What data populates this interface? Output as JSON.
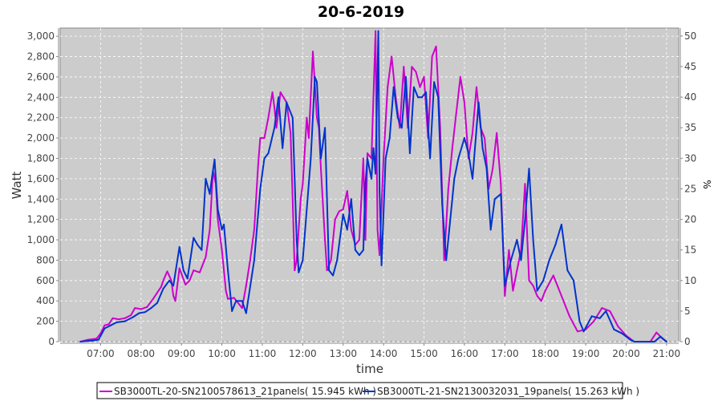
{
  "chart_data": {
    "type": "line",
    "title": "20-6-2019",
    "xlabel": "time",
    "ylabel": "Watt",
    "y2label": "%",
    "xlim": [
      6.0,
      21.3
    ],
    "ylim": [
      0,
      3080
    ],
    "y2lim": [
      0,
      51.3
    ],
    "grid": true,
    "legend_position": "bottom",
    "x_ticks": [
      {
        "v": 7,
        "label": "07:00"
      },
      {
        "v": 8,
        "label": "08:00"
      },
      {
        "v": 9,
        "label": "09:00"
      },
      {
        "v": 10,
        "label": "10:00"
      },
      {
        "v": 11,
        "label": "11:00"
      },
      {
        "v": 12,
        "label": "12:00"
      },
      {
        "v": 13,
        "label": "13:00"
      },
      {
        "v": 14,
        "label": "14:00"
      },
      {
        "v": 15,
        "label": "15:00"
      },
      {
        "v": 16,
        "label": "16:00"
      },
      {
        "v": 17,
        "label": "17:00"
      },
      {
        "v": 18,
        "label": "18:00"
      },
      {
        "v": 19,
        "label": "19:00"
      },
      {
        "v": 20,
        "label": "20:00"
      },
      {
        "v": 21,
        "label": "21:00"
      }
    ],
    "y_ticks": [
      {
        "v": 0,
        "label": "0"
      },
      {
        "v": 200,
        "label": "200"
      },
      {
        "v": 400,
        "label": "400"
      },
      {
        "v": 600,
        "label": "600"
      },
      {
        "v": 800,
        "label": "800"
      },
      {
        "v": 1000,
        "label": "1,000"
      },
      {
        "v": 1200,
        "label": "1,200"
      },
      {
        "v": 1400,
        "label": "1,400"
      },
      {
        "v": 1600,
        "label": "1,600"
      },
      {
        "v": 1800,
        "label": "1,800"
      },
      {
        "v": 2000,
        "label": "2,000"
      },
      {
        "v": 2200,
        "label": "2,200"
      },
      {
        "v": 2400,
        "label": "2,400"
      },
      {
        "v": 2600,
        "label": "2,600"
      },
      {
        "v": 2800,
        "label": "2,800"
      },
      {
        "v": 3000,
        "label": "3,000"
      }
    ],
    "y2_ticks": [
      {
        "v": 0,
        "label": "0"
      },
      {
        "v": 5,
        "label": "5"
      },
      {
        "v": 10,
        "label": "10"
      },
      {
        "v": 15,
        "label": "15"
      },
      {
        "v": 20,
        "label": "20"
      },
      {
        "v": 25,
        "label": "25"
      },
      {
        "v": 30,
        "label": "30"
      },
      {
        "v": 35,
        "label": "35"
      },
      {
        "v": 40,
        "label": "40"
      },
      {
        "v": 45,
        "label": "45"
      },
      {
        "v": 50,
        "label": "50"
      }
    ],
    "series": [
      {
        "name": "SB3000TL-20-SN2100578613_21panels( 15.945 kWh )",
        "color": "#cc00cc",
        "points": [
          [
            6.5,
            0
          ],
          [
            6.7,
            20
          ],
          [
            6.9,
            30
          ],
          [
            7.0,
            80
          ],
          [
            7.1,
            160
          ],
          [
            7.2,
            170
          ],
          [
            7.3,
            230
          ],
          [
            7.45,
            220
          ],
          [
            7.6,
            230
          ],
          [
            7.75,
            260
          ],
          [
            7.85,
            330
          ],
          [
            8.0,
            320
          ],
          [
            8.15,
            340
          ],
          [
            8.3,
            420
          ],
          [
            8.4,
            480
          ],
          [
            8.5,
            540
          ],
          [
            8.55,
            600
          ],
          [
            8.65,
            690
          ],
          [
            8.75,
            600
          ],
          [
            8.8,
            450
          ],
          [
            8.85,
            400
          ],
          [
            8.95,
            720
          ],
          [
            9.1,
            560
          ],
          [
            9.2,
            600
          ],
          [
            9.3,
            700
          ],
          [
            9.45,
            680
          ],
          [
            9.6,
            830
          ],
          [
            9.7,
            1100
          ],
          [
            9.78,
            1680
          ],
          [
            9.85,
            1550
          ],
          [
            9.9,
            1200
          ],
          [
            10.0,
            900
          ],
          [
            10.1,
            500
          ],
          [
            10.15,
            420
          ],
          [
            10.3,
            430
          ],
          [
            10.5,
            330
          ],
          [
            10.6,
            550
          ],
          [
            10.7,
            800
          ],
          [
            10.8,
            1100
          ],
          [
            10.9,
            1750
          ],
          [
            10.95,
            2000
          ],
          [
            11.05,
            2000
          ],
          [
            11.15,
            2200
          ],
          [
            11.25,
            2450
          ],
          [
            11.3,
            2300
          ],
          [
            11.35,
            2100
          ],
          [
            11.45,
            2450
          ],
          [
            11.6,
            2350
          ],
          [
            11.7,
            2050
          ],
          [
            11.75,
            1400
          ],
          [
            11.8,
            700
          ],
          [
            11.85,
            800
          ],
          [
            11.95,
            1400
          ],
          [
            12.0,
            1550
          ],
          [
            12.1,
            2200
          ],
          [
            12.15,
            2000
          ],
          [
            12.25,
            2850
          ],
          [
            12.35,
            2200
          ],
          [
            12.4,
            2100
          ],
          [
            12.45,
            1700
          ],
          [
            12.55,
            1000
          ],
          [
            12.6,
            700
          ],
          [
            12.7,
            800
          ],
          [
            12.8,
            1200
          ],
          [
            12.9,
            1280
          ],
          [
            13.0,
            1300
          ],
          [
            13.1,
            1480
          ],
          [
            13.2,
            1100
          ],
          [
            13.3,
            950
          ],
          [
            13.4,
            1000
          ],
          [
            13.5,
            1800
          ],
          [
            13.55,
            1000
          ],
          [
            13.6,
            1850
          ],
          [
            13.7,
            1800
          ],
          [
            13.75,
            2400
          ],
          [
            13.8,
            3050
          ],
          [
            13.85,
            1100
          ],
          [
            13.9,
            850
          ],
          [
            14.0,
            1800
          ],
          [
            14.1,
            2500
          ],
          [
            14.2,
            2800
          ],
          [
            14.3,
            2400
          ],
          [
            14.4,
            2100
          ],
          [
            14.5,
            2700
          ],
          [
            14.6,
            2100
          ],
          [
            14.7,
            2700
          ],
          [
            14.8,
            2650
          ],
          [
            14.9,
            2500
          ],
          [
            15.0,
            2600
          ],
          [
            15.1,
            2000
          ],
          [
            15.2,
            2800
          ],
          [
            15.3,
            2900
          ],
          [
            15.4,
            2100
          ],
          [
            15.5,
            800
          ],
          [
            15.6,
            1500
          ],
          [
            15.7,
            1900
          ],
          [
            15.8,
            2250
          ],
          [
            15.9,
            2600
          ],
          [
            16.0,
            2350
          ],
          [
            16.1,
            1800
          ],
          [
            16.2,
            2050
          ],
          [
            16.3,
            2500
          ],
          [
            16.4,
            2100
          ],
          [
            16.5,
            2000
          ],
          [
            16.6,
            1500
          ],
          [
            16.7,
            1700
          ],
          [
            16.8,
            2050
          ],
          [
            16.9,
            1550
          ],
          [
            17.0,
            450
          ],
          [
            17.1,
            900
          ],
          [
            17.2,
            500
          ],
          [
            17.3,
            700
          ],
          [
            17.4,
            900
          ],
          [
            17.5,
            1550
          ],
          [
            17.6,
            600
          ],
          [
            17.7,
            550
          ],
          [
            17.8,
            450
          ],
          [
            17.9,
            400
          ],
          [
            18.0,
            500
          ],
          [
            18.2,
            650
          ],
          [
            18.4,
            450
          ],
          [
            18.6,
            250
          ],
          [
            18.8,
            100
          ],
          [
            19.0,
            120
          ],
          [
            19.2,
            200
          ],
          [
            19.4,
            330
          ],
          [
            19.6,
            300
          ],
          [
            19.8,
            150
          ],
          [
            20.0,
            60
          ],
          [
            20.2,
            0
          ],
          [
            20.6,
            0
          ],
          [
            20.75,
            90
          ],
          [
            20.9,
            30
          ],
          [
            21.0,
            0
          ]
        ]
      },
      {
        "name": "SB3000TL-21-SN2130032031_19panels( 15.263 kWh )",
        "color": "#0033cc",
        "points": [
          [
            6.5,
            0
          ],
          [
            6.8,
            10
          ],
          [
            6.95,
            20
          ],
          [
            7.1,
            130
          ],
          [
            7.25,
            160
          ],
          [
            7.4,
            190
          ],
          [
            7.6,
            200
          ],
          [
            7.8,
            240
          ],
          [
            7.95,
            280
          ],
          [
            8.1,
            290
          ],
          [
            8.25,
            330
          ],
          [
            8.4,
            380
          ],
          [
            8.55,
            520
          ],
          [
            8.7,
            600
          ],
          [
            8.8,
            550
          ],
          [
            8.9,
            800
          ],
          [
            8.95,
            930
          ],
          [
            9.05,
            700
          ],
          [
            9.15,
            620
          ],
          [
            9.3,
            1020
          ],
          [
            9.4,
            950
          ],
          [
            9.5,
            900
          ],
          [
            9.6,
            1600
          ],
          [
            9.7,
            1450
          ],
          [
            9.75,
            1600
          ],
          [
            9.82,
            1790
          ],
          [
            9.9,
            1300
          ],
          [
            10.0,
            1100
          ],
          [
            10.05,
            1150
          ],
          [
            10.15,
            700
          ],
          [
            10.25,
            300
          ],
          [
            10.35,
            400
          ],
          [
            10.5,
            400
          ],
          [
            10.6,
            280
          ],
          [
            10.8,
            800
          ],
          [
            10.95,
            1500
          ],
          [
            11.05,
            1800
          ],
          [
            11.15,
            1850
          ],
          [
            11.3,
            2100
          ],
          [
            11.4,
            2400
          ],
          [
            11.5,
            1900
          ],
          [
            11.6,
            2350
          ],
          [
            11.75,
            2200
          ],
          [
            11.85,
            1000
          ],
          [
            11.9,
            680
          ],
          [
            12.0,
            800
          ],
          [
            12.1,
            1300
          ],
          [
            12.2,
            1800
          ],
          [
            12.3,
            2600
          ],
          [
            12.35,
            2550
          ],
          [
            12.45,
            1800
          ],
          [
            12.55,
            2100
          ],
          [
            12.65,
            700
          ],
          [
            12.75,
            650
          ],
          [
            12.85,
            800
          ],
          [
            13.0,
            1250
          ],
          [
            13.1,
            1100
          ],
          [
            13.2,
            1400
          ],
          [
            13.3,
            900
          ],
          [
            13.4,
            850
          ],
          [
            13.5,
            900
          ],
          [
            13.55,
            1550
          ],
          [
            13.6,
            1800
          ],
          [
            13.7,
            1600
          ],
          [
            13.75,
            1900
          ],
          [
            13.8,
            1650
          ],
          [
            13.87,
            3050
          ],
          [
            13.9,
            1500
          ],
          [
            13.95,
            750
          ],
          [
            14.05,
            1800
          ],
          [
            14.15,
            2000
          ],
          [
            14.25,
            2500
          ],
          [
            14.35,
            2200
          ],
          [
            14.45,
            2100
          ],
          [
            14.55,
            2600
          ],
          [
            14.65,
            1850
          ],
          [
            14.75,
            2500
          ],
          [
            14.85,
            2400
          ],
          [
            14.95,
            2400
          ],
          [
            15.05,
            2450
          ],
          [
            15.15,
            1800
          ],
          [
            15.25,
            2550
          ],
          [
            15.35,
            2400
          ],
          [
            15.45,
            1350
          ],
          [
            15.55,
            800
          ],
          [
            15.65,
            1200
          ],
          [
            15.75,
            1600
          ],
          [
            15.85,
            1800
          ],
          [
            16.0,
            2000
          ],
          [
            16.1,
            1850
          ],
          [
            16.2,
            1600
          ],
          [
            16.35,
            2350
          ],
          [
            16.45,
            1900
          ],
          [
            16.55,
            1700
          ],
          [
            16.65,
            1100
          ],
          [
            16.75,
            1400
          ],
          [
            16.9,
            1450
          ],
          [
            17.0,
            550
          ],
          [
            17.15,
            800
          ],
          [
            17.3,
            1000
          ],
          [
            17.4,
            800
          ],
          [
            17.5,
            1200
          ],
          [
            17.6,
            1700
          ],
          [
            17.7,
            1000
          ],
          [
            17.8,
            500
          ],
          [
            17.95,
            600
          ],
          [
            18.1,
            800
          ],
          [
            18.25,
            950
          ],
          [
            18.4,
            1150
          ],
          [
            18.55,
            700
          ],
          [
            18.7,
            600
          ],
          [
            18.85,
            200
          ],
          [
            18.95,
            100
          ],
          [
            19.15,
            250
          ],
          [
            19.35,
            230
          ],
          [
            19.5,
            300
          ],
          [
            19.7,
            120
          ],
          [
            19.9,
            80
          ],
          [
            20.1,
            20
          ],
          [
            20.2,
            0
          ],
          [
            20.7,
            0
          ],
          [
            20.85,
            50
          ],
          [
            21.0,
            0
          ]
        ]
      }
    ]
  }
}
